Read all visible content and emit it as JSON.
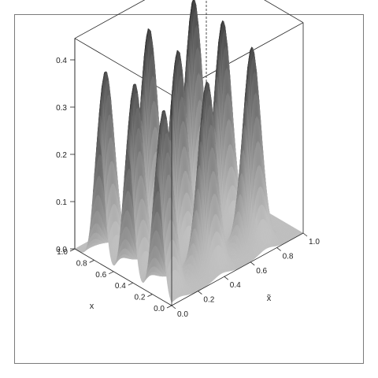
{
  "chart_data": {
    "type": "surface",
    "description_labels": {
      "x_axis_label": "x",
      "y_axis_label": "x̃"
    },
    "x_axis": {
      "range": [
        0,
        1
      ],
      "ticks": [
        "0.0",
        "0.2",
        "0.4",
        "0.6",
        "0.8",
        "1.0"
      ]
    },
    "y_axis": {
      "range": [
        0,
        1
      ],
      "ticks": [
        "0.0",
        "0.2",
        "0.4",
        "0.6",
        "0.8",
        "1.0"
      ]
    },
    "z_axis": {
      "range": [
        0,
        0.45
      ],
      "ticks": [
        "0.0",
        "0.1",
        "0.2",
        "0.3",
        "0.4"
      ]
    },
    "peaks": [
      {
        "x": 0.75,
        "y": 0.05,
        "height": 0.4
      },
      {
        "x": 0.45,
        "y": 0.05,
        "height": 0.41
      },
      {
        "x": 0.15,
        "y": 0.05,
        "height": 0.39
      },
      {
        "x": 0.75,
        "y": 0.38,
        "height": 0.44
      },
      {
        "x": 0.45,
        "y": 0.38,
        "height": 0.43
      },
      {
        "x": 0.15,
        "y": 0.38,
        "height": 0.4
      },
      {
        "x": 0.75,
        "y": 0.72,
        "height": 0.45
      },
      {
        "x": 0.45,
        "y": 0.72,
        "height": 0.44
      },
      {
        "x": 0.15,
        "y": 0.72,
        "height": 0.42
      }
    ],
    "peak_width": 0.055,
    "surface_color": "#444444",
    "box": true
  }
}
